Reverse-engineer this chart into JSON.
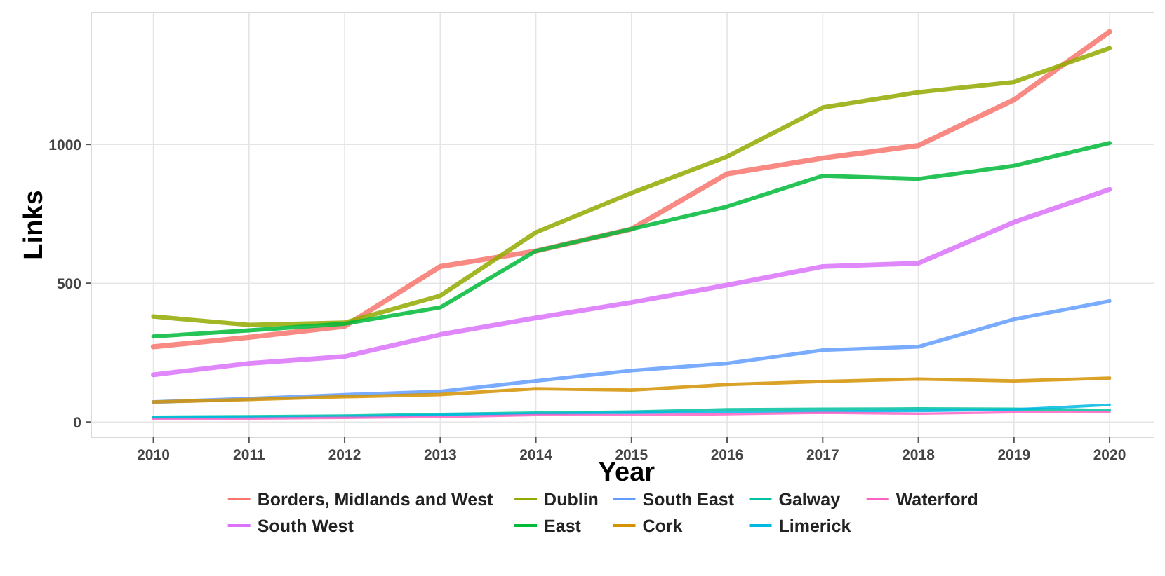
{
  "chart_data": {
    "type": "line",
    "xlabel": "Year",
    "ylabel": "Links",
    "x": [
      2010,
      2011,
      2012,
      2013,
      2014,
      2015,
      2016,
      2017,
      2018,
      2019,
      2020
    ],
    "xlim": [
      2009.35,
      2020.55
    ],
    "xticks": [
      2010,
      2011,
      2012,
      2013,
      2014,
      2015,
      2016,
      2017,
      2018,
      2019,
      2020
    ],
    "ylim": [
      -55,
      1475
    ],
    "yticks": [
      0,
      500,
      1000
    ],
    "grid": true,
    "legend": "bottom",
    "marker": "none",
    "line_style": "solid",
    "series": [
      {
        "name": "Borders, Midlands and West",
        "color": "#f8766d",
        "values": [
          271,
          305,
          345,
          560,
          616,
          695,
          894,
          951,
          996,
          1161,
          1406
        ]
      },
      {
        "name": "South West",
        "color": "#db72fb",
        "values": [
          170,
          211,
          236,
          315,
          375,
          431,
          493,
          560,
          572,
          720,
          838
        ]
      },
      {
        "name": "Dublin",
        "color": "#93aa00",
        "values": [
          380,
          350,
          358,
          455,
          683,
          825,
          956,
          1133,
          1188,
          1225,
          1347
        ]
      },
      {
        "name": "East",
        "color": "#00ba38",
        "values": [
          308,
          330,
          354,
          413,
          616,
          695,
          776,
          887,
          876,
          923,
          1005
        ]
      },
      {
        "name": "South East",
        "color": "#619cff",
        "values": [
          72,
          84,
          98,
          110,
          148,
          185,
          211,
          259,
          271,
          370,
          436
        ]
      },
      {
        "name": "Cork",
        "color": "#d39200",
        "values": [
          72,
          81,
          91,
          99,
          120,
          115,
          135,
          146,
          155,
          148,
          158
        ]
      },
      {
        "name": "Galway",
        "color": "#00c19f",
        "values": [
          18,
          20,
          22,
          28,
          33,
          37,
          45,
          47,
          48,
          47,
          42
        ]
      },
      {
        "name": "Limerick",
        "color": "#00b9e3",
        "values": [
          15,
          17,
          20,
          25,
          30,
          33,
          35,
          38,
          40,
          45,
          62
        ]
      },
      {
        "name": "Waterford",
        "color": "#ff61c3",
        "values": [
          10,
          12,
          15,
          18,
          25,
          25,
          28,
          33,
          30,
          35,
          35
        ]
      }
    ]
  }
}
